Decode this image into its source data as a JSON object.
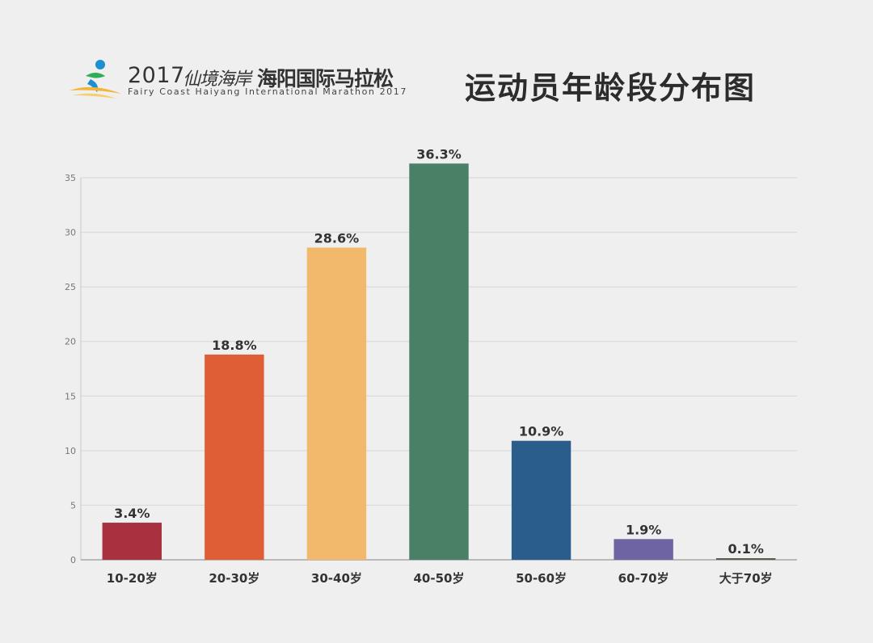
{
  "header": {
    "logo_year": "2017",
    "logo_script": "仙境海岸",
    "logo_cn": "海阳国际马拉松",
    "logo_en": "Fairy Coast Haiyang International Marathon 2017",
    "page_title": "运动员年龄段分布图"
  },
  "chart_data": {
    "type": "bar",
    "categories": [
      "10-20岁",
      "20-30岁",
      "30-40岁",
      "40-50岁",
      "50-60岁",
      "60-70岁",
      "大于70岁"
    ],
    "values": [
      3.4,
      18.8,
      28.6,
      36.3,
      10.9,
      1.9,
      0.1
    ],
    "data_labels": [
      "3.4%",
      "18.8%",
      "28.6%",
      "36.3%",
      "10.9%",
      "1.9%",
      "0.1%"
    ],
    "bar_colors": [
      "#a8303f",
      "#e05e36",
      "#f2b96c",
      "#4a8166",
      "#2a5d8c",
      "#6e63a3",
      "#5e5851"
    ],
    "yticks": [
      0,
      5,
      10,
      15,
      20,
      25,
      30,
      35
    ],
    "ylim": [
      0,
      35
    ],
    "grid": true,
    "legend": false
  }
}
